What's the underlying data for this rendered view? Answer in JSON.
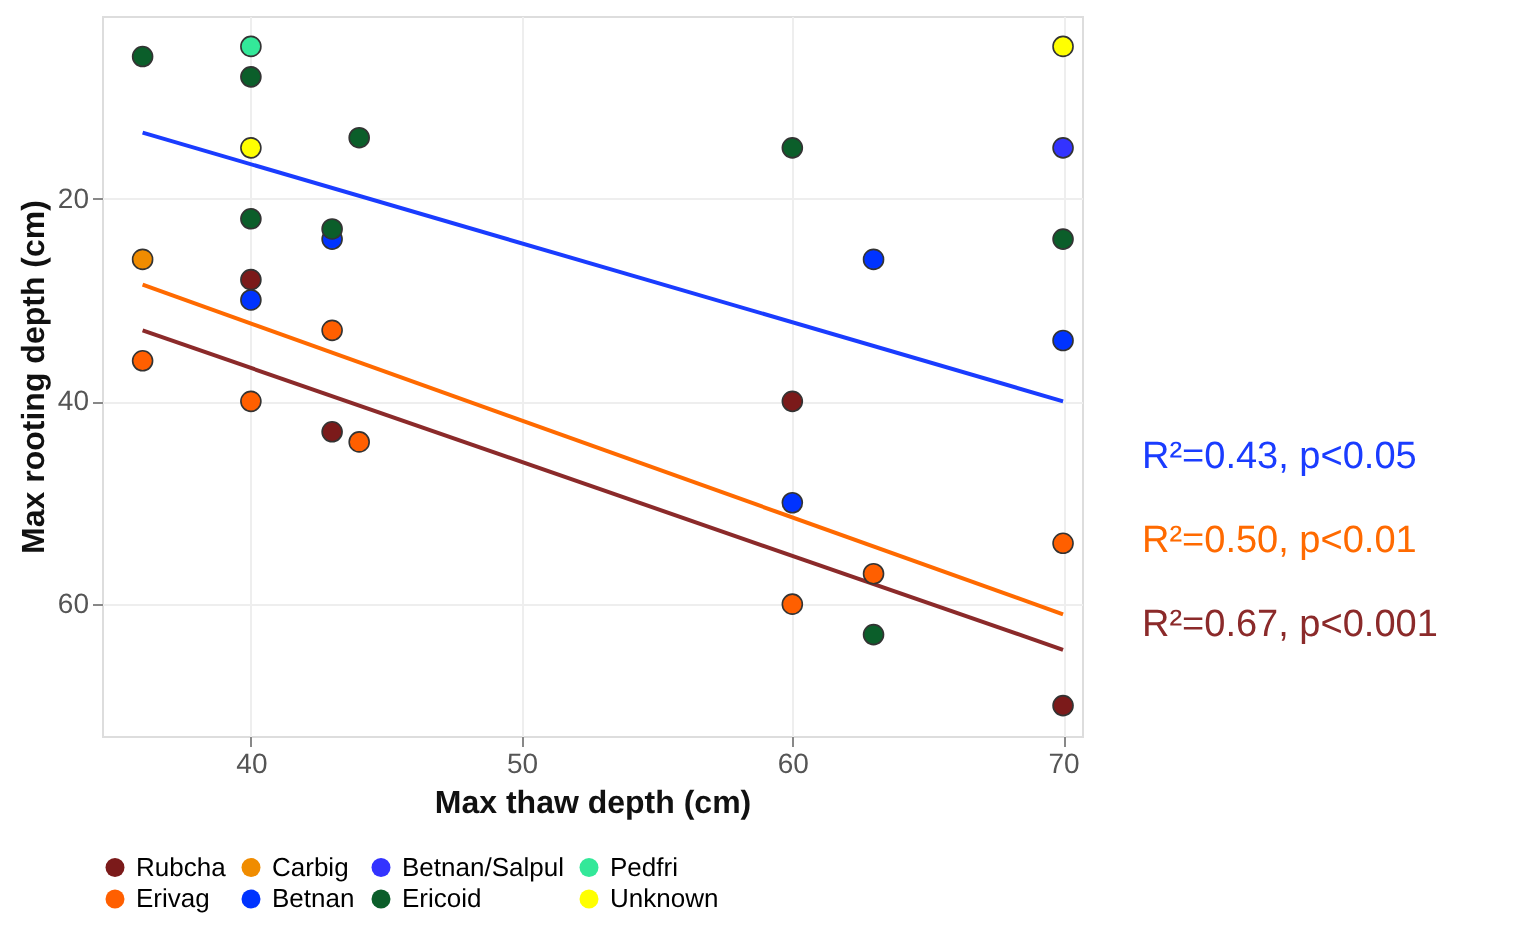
{
  "chart_data": {
    "type": "scatter",
    "xlabel": "Max thaw depth (cm)",
    "ylabel": "Max rooting depth (cm)",
    "xlim": [
      34.5,
      70.7
    ],
    "xticks": [
      40,
      50,
      60,
      70
    ],
    "ylim": [
      73,
      2
    ],
    "yticks": [
      20,
      40,
      60
    ],
    "grid": true,
    "legend": "bottom",
    "marker": "circle",
    "series": [
      {
        "name": "Rubcha",
        "color": "#7b1a1a",
        "x": [
          40,
          43,
          60,
          70
        ],
        "values": [
          28,
          43,
          40,
          70
        ]
      },
      {
        "name": "Carbig",
        "color": "#f08c00",
        "x": [
          36
        ],
        "values": [
          26
        ]
      },
      {
        "name": "Betnan/Salpul",
        "color": "#3333ff",
        "x": [
          70
        ],
        "values": [
          15
        ]
      },
      {
        "name": "Pedfri",
        "color": "#33e899",
        "x": [
          40
        ],
        "values": [
          5
        ]
      },
      {
        "name": "Erivag",
        "color": "#ff5f00",
        "x": [
          36,
          40,
          43,
          44,
          60,
          63,
          70
        ],
        "values": [
          36,
          40,
          33,
          44,
          60,
          57,
          54
        ]
      },
      {
        "name": "Betnan",
        "color": "#0033ff",
        "x": [
          40,
          43,
          60,
          63,
          70
        ],
        "values": [
          30,
          24,
          50,
          26,
          34
        ]
      },
      {
        "name": "Ericoid",
        "color": "#0b5e2a",
        "x": [
          36,
          40,
          40,
          43,
          44,
          60,
          63,
          70
        ],
        "values": [
          6,
          8,
          22,
          23,
          14,
          15,
          63,
          24
        ]
      },
      {
        "name": "Unknown",
        "color": "#ffff00",
        "x": [
          40,
          70
        ],
        "values": [
          15,
          5
        ]
      },
      {
        "type": "line",
        "marker": "none",
        "color": "#1a3cff",
        "x": [
          36,
          70
        ],
        "values": [
          13.5,
          40
        ]
      },
      {
        "type": "line",
        "marker": "none",
        "color": "#ff6a00",
        "x": [
          36,
          70
        ],
        "values": [
          28.5,
          61
        ]
      },
      {
        "type": "line",
        "marker": "none",
        "color": "#8b2a2a",
        "x": [
          36,
          70
        ],
        "values": [
          33,
          64.5
        ]
      }
    ],
    "annotations": [
      "R²=0.43, p<0.05",
      "R²=0.50, p<0.01",
      "R²=0.67, p<0.001"
    ]
  }
}
